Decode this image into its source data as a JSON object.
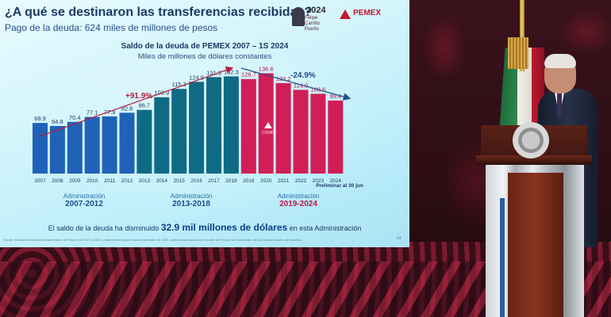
{
  "slide": {
    "headline": "¿A qué se destinaron las transferencias recibidas?",
    "subhead": "Pago de la deuda: 624 miles de millones de pesos",
    "gov_logo": {
      "year": "2024",
      "name": "Felipe Carrillo Puerto"
    },
    "pemex_logo": {
      "word": "PEMEX"
    },
    "chart_title": "Saldo de la deuda de PEMEX 2007 – 1S 2024",
    "chart_subtitle": "Miles de millones de dólares constantes",
    "growth_label": "+91.9%",
    "decline_label": "-24.9%",
    "covid_label": "COVID",
    "preliminary_note": "Preliminar al 30 jun",
    "administrations": [
      {
        "label": "Administración",
        "period": "2007-2012"
      },
      {
        "label": "Administración",
        "period": "2013-2018"
      },
      {
        "label": "Administración",
        "period": "2019-2024"
      }
    ],
    "footnote_pre": "El saldo de la deuda ha disminuido ",
    "footnote_bold": "32.9 mil millones de dólares",
    "footnote_post": " en esta Administración",
    "source": "Fuente: Estados financieros dictaminados de Pemex de 2007 a 2023, y preliminares para el primer semestre de 2024. Valores indexados con el Índice de Precios al Consumidor de los Estados Unidos de América.",
    "page_number": "54"
  },
  "chart_data": {
    "type": "bar",
    "title": "Saldo de la deuda de PEMEX 2007 – 1S 2024",
    "subtitle": "Miles de millones de dólares constantes",
    "categories": [
      "2007",
      "2008",
      "2009",
      "2010",
      "2011",
      "2012",
      "2013",
      "2014",
      "2015",
      "2016",
      "2017",
      "2018",
      "2019",
      "2020",
      "2021",
      "2022",
      "2023",
      "2024"
    ],
    "values": [
      68.9,
      64.8,
      70.4,
      77.1,
      77.9,
      82.8,
      86.7,
      103.9,
      115.3,
      124.9,
      131.3,
      132.3,
      128.7,
      136.6,
      123.2,
      114.0,
      108.6,
      99.4
    ],
    "value_labels": [
      "68.9",
      "64.8",
      "70.4",
      "77.1",
      "77.9",
      "82.8",
      "86.7",
      "103.9",
      "115.3",
      "124.9",
      "131.3",
      "132.3",
      "128.7",
      "136.6",
      "123.2",
      "114.0",
      "108.6",
      "99.4"
    ],
    "ylim": [
      0,
      150
    ],
    "colors": {
      "blue": "#1f63b8",
      "teal": "#0f6b84",
      "red": "#d21e57",
      "arrow": "#b31d3f",
      "arrow2": "#1f4f8a"
    },
    "color_groups": [
      "blue",
      "blue",
      "blue",
      "blue",
      "blue",
      "blue",
      "teal",
      "teal",
      "teal",
      "teal",
      "teal",
      "teal",
      "red",
      "red",
      "red",
      "red",
      "red",
      "red"
    ]
  }
}
